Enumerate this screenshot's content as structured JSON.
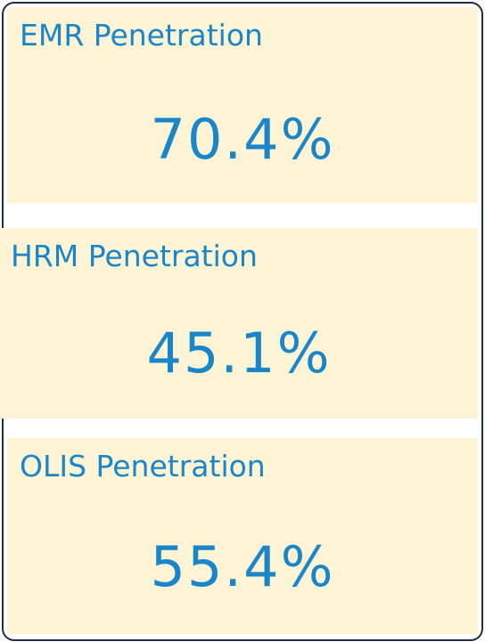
{
  "cards": [
    {
      "label": "EMR Penetration",
      "value": "70.4%"
    },
    {
      "label": "HRM Penetration",
      "value": "45.1%"
    },
    {
      "label": "OLIS Penetration",
      "value": "55.4%"
    }
  ]
}
